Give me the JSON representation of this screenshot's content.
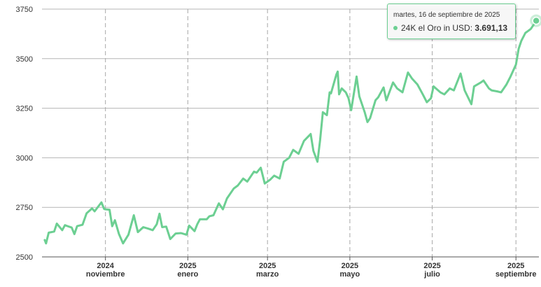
{
  "chart_data": {
    "type": "line",
    "series": [
      {
        "name": "24K el Oro in USD",
        "color": "#6ccf92",
        "points": [
          [
            "2024-09-17",
            2585
          ],
          [
            "2024-09-18",
            2568
          ],
          [
            "2024-09-20",
            2622
          ],
          [
            "2024-09-24",
            2628
          ],
          [
            "2024-09-26",
            2668
          ],
          [
            "2024-09-30",
            2635
          ],
          [
            "2024-10-02",
            2660
          ],
          [
            "2024-10-04",
            2655
          ],
          [
            "2024-10-07",
            2648
          ],
          [
            "2024-10-09",
            2615
          ],
          [
            "2024-10-11",
            2655
          ],
          [
            "2024-10-15",
            2662
          ],
          [
            "2024-10-18",
            2720
          ],
          [
            "2024-10-21",
            2738
          ],
          [
            "2024-10-22",
            2745
          ],
          [
            "2024-10-24",
            2730
          ],
          [
            "2024-10-29",
            2775
          ],
          [
            "2024-10-31",
            2742
          ],
          [
            "2024-11-01",
            2740
          ],
          [
            "2024-11-04",
            2738
          ],
          [
            "2024-11-06",
            2655
          ],
          [
            "2024-11-08",
            2685
          ],
          [
            "2024-11-11",
            2615
          ],
          [
            "2024-11-14",
            2568
          ],
          [
            "2024-11-18",
            2612
          ],
          [
            "2024-11-22",
            2710
          ],
          [
            "2024-11-25",
            2625
          ],
          [
            "2024-11-29",
            2650
          ],
          [
            "2024-12-03",
            2642
          ],
          [
            "2024-12-06",
            2635
          ],
          [
            "2024-12-09",
            2665
          ],
          [
            "2024-12-11",
            2718
          ],
          [
            "2024-12-13",
            2650
          ],
          [
            "2024-12-16",
            2653
          ],
          [
            "2024-12-19",
            2590
          ],
          [
            "2024-12-23",
            2618
          ],
          [
            "2024-12-27",
            2620
          ],
          [
            "2024-12-31",
            2612
          ],
          [
            "2025-01-02",
            2658
          ],
          [
            "2025-01-06",
            2630
          ],
          [
            "2025-01-08",
            2665
          ],
          [
            "2025-01-10",
            2690
          ],
          [
            "2025-01-15",
            2690
          ],
          [
            "2025-01-17",
            2705
          ],
          [
            "2025-01-20",
            2710
          ],
          [
            "2025-01-24",
            2770
          ],
          [
            "2025-01-27",
            2740
          ],
          [
            "2025-01-30",
            2795
          ],
          [
            "2025-02-04",
            2845
          ],
          [
            "2025-02-07",
            2860
          ],
          [
            "2025-02-11",
            2895
          ],
          [
            "2025-02-14",
            2880
          ],
          [
            "2025-02-19",
            2930
          ],
          [
            "2025-02-21",
            2925
          ],
          [
            "2025-02-24",
            2950
          ],
          [
            "2025-02-27",
            2870
          ],
          [
            "2025-03-03",
            2890
          ],
          [
            "2025-03-06",
            2910
          ],
          [
            "2025-03-10",
            2895
          ],
          [
            "2025-03-13",
            2980
          ],
          [
            "2025-03-17",
            3000
          ],
          [
            "2025-03-20",
            3040
          ],
          [
            "2025-03-24",
            3020
          ],
          [
            "2025-03-28",
            3085
          ],
          [
            "2025-04-02",
            3120
          ],
          [
            "2025-04-04",
            3035
          ],
          [
            "2025-04-07",
            2980
          ],
          [
            "2025-04-09",
            3090
          ],
          [
            "2025-04-11",
            3230
          ],
          [
            "2025-04-14",
            3215
          ],
          [
            "2025-04-16",
            3330
          ],
          [
            "2025-04-17",
            3325
          ],
          [
            "2025-04-21",
            3420
          ],
          [
            "2025-04-22",
            3435
          ],
          [
            "2025-04-23",
            3320
          ],
          [
            "2025-04-25",
            3350
          ],
          [
            "2025-04-28",
            3330
          ],
          [
            "2025-04-30",
            3300
          ],
          [
            "2025-05-02",
            3240
          ],
          [
            "2025-05-06",
            3410
          ],
          [
            "2025-05-08",
            3310
          ],
          [
            "2025-05-12",
            3230
          ],
          [
            "2025-05-14",
            3180
          ],
          [
            "2025-05-16",
            3200
          ],
          [
            "2025-05-20",
            3290
          ],
          [
            "2025-05-22",
            3305
          ],
          [
            "2025-05-26",
            3355
          ],
          [
            "2025-05-28",
            3290
          ],
          [
            "2025-06-02",
            3380
          ],
          [
            "2025-06-05",
            3350
          ],
          [
            "2025-06-09",
            3330
          ],
          [
            "2025-06-13",
            3430
          ],
          [
            "2025-06-16",
            3400
          ],
          [
            "2025-06-20",
            3370
          ],
          [
            "2025-06-24",
            3320
          ],
          [
            "2025-06-27",
            3280
          ],
          [
            "2025-06-30",
            3300
          ],
          [
            "2025-07-02",
            3360
          ],
          [
            "2025-07-07",
            3330
          ],
          [
            "2025-07-10",
            3320
          ],
          [
            "2025-07-14",
            3350
          ],
          [
            "2025-07-17",
            3340
          ],
          [
            "2025-07-22",
            3425
          ],
          [
            "2025-07-25",
            3340
          ],
          [
            "2025-07-30",
            3270
          ],
          [
            "2025-08-01",
            3360
          ],
          [
            "2025-08-06",
            3380
          ],
          [
            "2025-08-08",
            3390
          ],
          [
            "2025-08-12",
            3350
          ],
          [
            "2025-08-14",
            3340
          ],
          [
            "2025-08-18",
            3335
          ],
          [
            "2025-08-21",
            3330
          ],
          [
            "2025-08-25",
            3370
          ],
          [
            "2025-08-28",
            3410
          ],
          [
            "2025-09-01",
            3470
          ],
          [
            "2025-09-03",
            3550
          ],
          [
            "2025-09-05",
            3590
          ],
          [
            "2025-09-08",
            3630
          ],
          [
            "2025-09-10",
            3640
          ],
          [
            "2025-09-12",
            3650
          ],
          [
            "2025-09-15",
            3680
          ],
          [
            "2025-09-16",
            3691.13
          ]
        ]
      }
    ],
    "x_axis": {
      "type": "date",
      "range": [
        "2024-09-17",
        "2025-09-16"
      ],
      "ticks": [
        {
          "date": "2024-11-01",
          "year": "2024",
          "month": "noviembre"
        },
        {
          "date": "2025-01-01",
          "year": "2025",
          "month": "enero"
        },
        {
          "date": "2025-03-01",
          "year": "2025",
          "month": "marzo"
        },
        {
          "date": "2025-05-01",
          "year": "2025",
          "month": "mayo"
        },
        {
          "date": "2025-07-01",
          "year": "2025",
          "month": "julio"
        },
        {
          "date": "2025-09-01",
          "year": "2025",
          "month": "septiembre"
        }
      ],
      "gridlines": "dashed"
    },
    "y_axis": {
      "ylim": [
        2500,
        3750
      ],
      "ticks": [
        2500,
        2750,
        3000,
        3250,
        3500,
        3750
      ],
      "gridlines": "solid"
    },
    "tooltip": {
      "date_text": "martes, 16 de septiembre de 2025",
      "series_name": "24K el Oro in USD",
      "value_text": "3.691,13",
      "point": [
        "2025-09-16",
        3691.13
      ]
    }
  }
}
